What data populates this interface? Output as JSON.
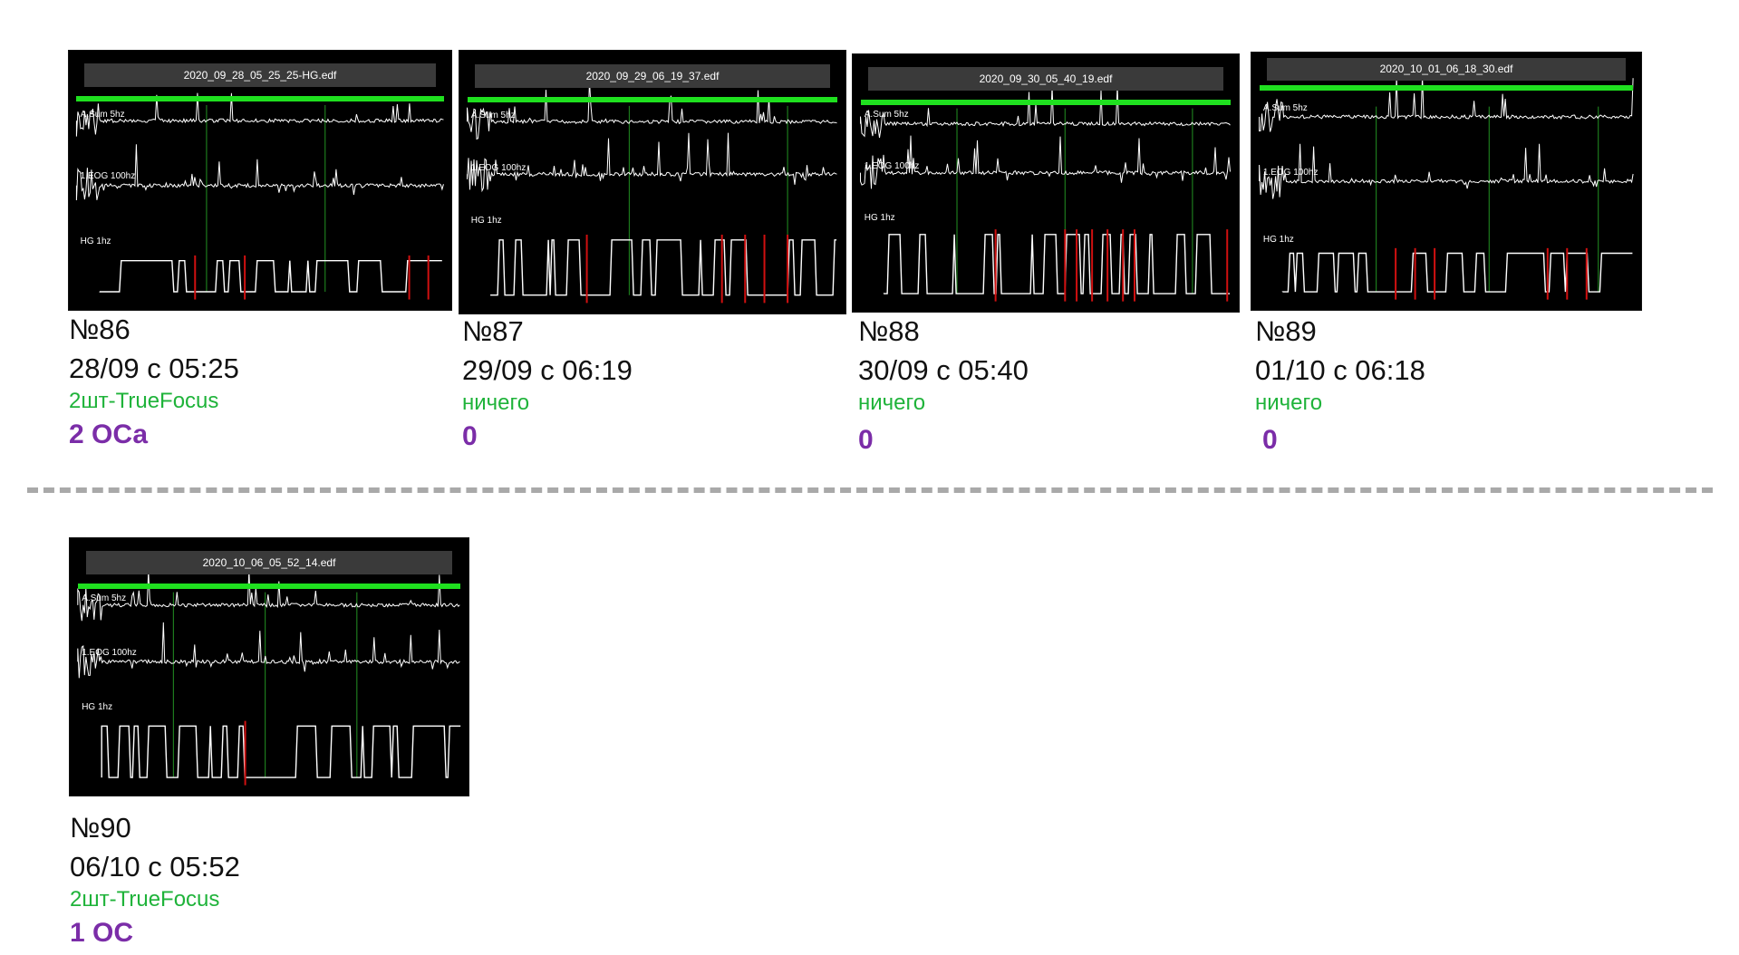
{
  "records": [
    {
      "file": "2020_09_28_05_25_25-HG.edf",
      "channels": [
        "A.Sum 5hz",
        "1.EOG 100hz",
        "HG 1hz"
      ],
      "number": "№86",
      "date": "28/09 с 05:25",
      "note": "2шт-TrueFocus",
      "count": "2 ОСа"
    },
    {
      "file": "2020_09_29_06_19_37.edf",
      "channels": [
        "A.Sum 5hz",
        "1.EOG 100hz",
        "HG 1hz"
      ],
      "number": "№87",
      "date": "29/09 с 06:19",
      "note": "ничего",
      "count": "0"
    },
    {
      "file": "2020_09_30_05_40_19.edf",
      "channels": [
        "A.Sum 5hz",
        "1.EOG 100hz",
        "HG 1hz"
      ],
      "number": "№88",
      "date": "30/09 с 05:40",
      "note": "ничего",
      "count": "0"
    },
    {
      "file": "2020_10_01_06_18_30.edf",
      "channels": [
        "A.Sum 5hz",
        "1.EOG 100hz",
        "HG 1hz"
      ],
      "number": "№89",
      "date": "01/10 с 06:18",
      "note": "ничего",
      "count": "0"
    },
    {
      "file": "2020_10_06_05_52_14.edf",
      "channels": [
        "A.Sum 5hz",
        "1.EOG 100hz",
        "HG 1hz"
      ],
      "number": "№90",
      "date": "06/10 с 05:52",
      "note": "2шт-TrueFocus",
      "count": "1 ОС"
    }
  ],
  "colors": {
    "note": "#1fb33a",
    "count": "#7b2da8",
    "progress_bar": "#1fe01f",
    "event_marker": "#d01010"
  }
}
